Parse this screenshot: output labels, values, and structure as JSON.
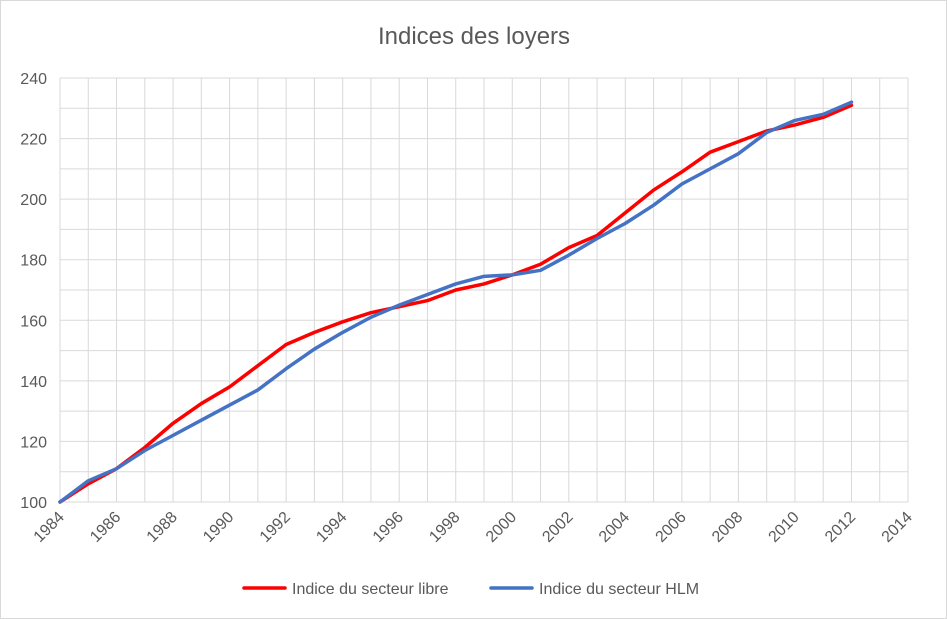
{
  "chart_data": {
    "type": "line",
    "title": "Indices des loyers",
    "xlabel": "",
    "ylabel": "",
    "xlim": [
      1984,
      2014
    ],
    "ylim": [
      100,
      240
    ],
    "x_ticks": [
      "1984",
      "1986",
      "1988",
      "1990",
      "1992",
      "1994",
      "1996",
      "1998",
      "2000",
      "2002",
      "2004",
      "2006",
      "2008",
      "2010",
      "2012",
      "2014"
    ],
    "y_ticks": [
      "100",
      "120",
      "140",
      "160",
      "180",
      "200",
      "220",
      "240"
    ],
    "grid": true,
    "legend_position": "bottom",
    "x": [
      1984,
      1985,
      1986,
      1987,
      1988,
      1989,
      1990,
      1991,
      1992,
      1993,
      1994,
      1995,
      1996,
      1997,
      1998,
      1999,
      2000,
      2001,
      2002,
      2003,
      2004,
      2005,
      2006,
      2007,
      2008,
      2009,
      2010,
      2011,
      2012
    ],
    "series": [
      {
        "name": "Indice du secteur libre",
        "color": "#ff0000",
        "values": [
          100,
          106,
          111,
          118,
          126,
          132.5,
          138,
          145,
          152,
          156,
          159.5,
          162.5,
          164.5,
          166.5,
          170,
          172,
          175,
          178.5,
          184,
          188,
          195.5,
          203,
          209,
          215.5,
          219,
          222.5,
          224.5,
          227,
          231
        ]
      },
      {
        "name": "Indice du secteur HLM",
        "color": "#4472c4",
        "values": [
          100,
          107,
          111,
          117,
          122,
          127,
          132,
          137,
          144,
          150.5,
          156,
          161,
          165,
          168.5,
          172,
          174.5,
          175,
          176.5,
          181.5,
          187,
          192,
          198,
          205,
          210,
          215,
          222,
          226,
          228,
          232
        ]
      }
    ]
  }
}
